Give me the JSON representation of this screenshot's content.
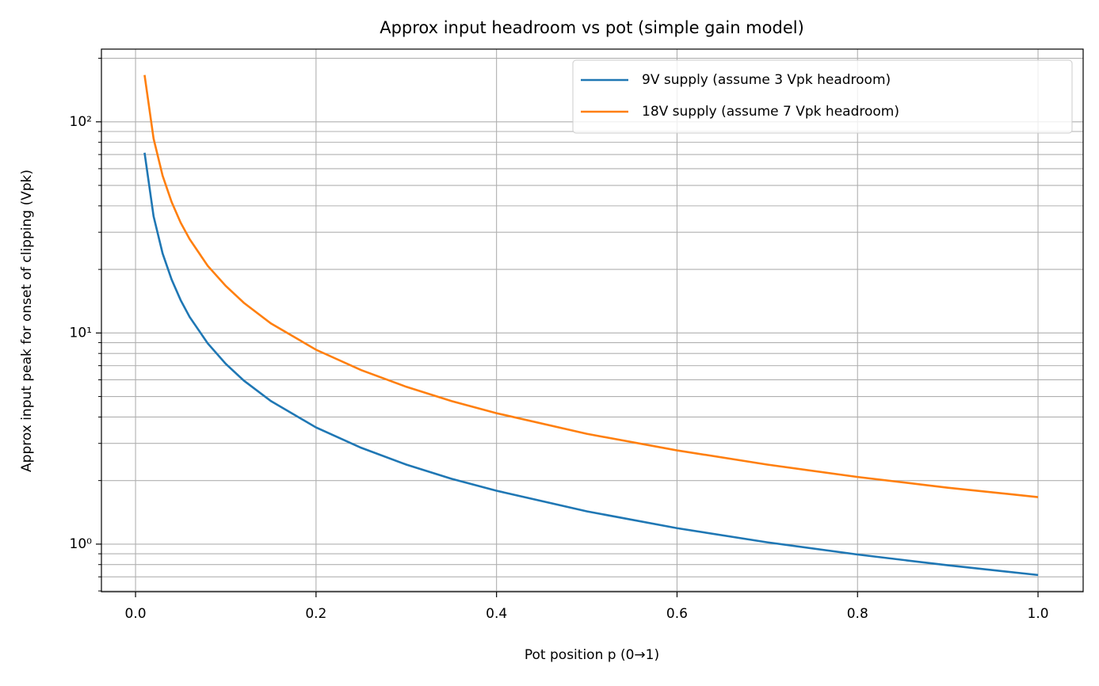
{
  "chart_data": {
    "type": "line",
    "title": "Approx input headroom vs pot (simple gain model)",
    "xlabel": "Pot position p (0→1)",
    "ylabel": "Approx input peak for onset of clipping (Vpk)",
    "x": [
      0.01,
      0.02,
      0.03,
      0.04,
      0.05,
      0.06,
      0.08,
      0.1,
      0.12,
      0.15,
      0.2,
      0.25,
      0.3,
      0.35,
      0.4,
      0.5,
      0.6,
      0.7,
      0.8,
      0.9,
      1.0
    ],
    "series": [
      {
        "name": "9V supply (assume 3 Vpk headroom)",
        "color": "#1f77b4",
        "values": [
          71.4,
          35.7,
          23.8,
          17.9,
          14.3,
          11.9,
          8.93,
          7.14,
          5.95,
          4.76,
          3.57,
          2.86,
          2.38,
          2.04,
          1.79,
          1.43,
          1.19,
          1.02,
          0.893,
          0.794,
          0.714
        ]
      },
      {
        "name": "18V supply (assume 7 Vpk headroom)",
        "color": "#ff7f0e",
        "values": [
          166.7,
          83.3,
          55.6,
          41.7,
          33.3,
          27.8,
          20.8,
          16.7,
          13.9,
          11.1,
          8.33,
          6.67,
          5.56,
          4.76,
          4.17,
          3.33,
          2.78,
          2.38,
          2.08,
          1.85,
          1.67
        ]
      }
    ],
    "xlim": [
      -0.0378,
      1.05
    ],
    "xticks": [
      {
        "value": 0,
        "label": "0.0"
      },
      0.2,
      0.4,
      0.6,
      0.8,
      {
        "value": 1,
        "label": "1.0"
      }
    ],
    "ylim": [
      0.595,
      221
    ],
    "yscale": "log",
    "yticks": [
      {
        "value": 1,
        "label": "10⁰"
      },
      {
        "value": 10,
        "label": "10¹"
      },
      {
        "value": 100,
        "label": "10²"
      }
    ],
    "yminorticks": [
      0.6,
      0.7,
      0.8,
      0.9,
      2,
      3,
      4,
      5,
      6,
      7,
      8,
      9,
      20,
      30,
      40,
      50,
      60,
      70,
      80,
      90,
      200
    ],
    "grid": true,
    "legend": "upper right"
  }
}
